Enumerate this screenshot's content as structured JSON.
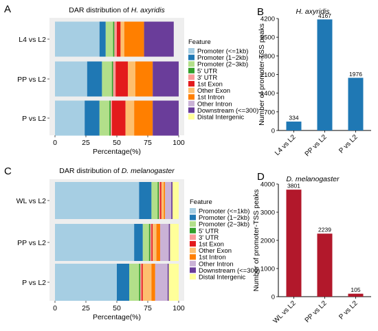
{
  "colors": {
    "Promoter (<=1kb)": "#a6cee3",
    "Promoter (1-2kb)": "#1f78b4",
    "Promoter (2-3kb)": "#b2df8a",
    "5' UTR": "#33a02c",
    "3' UTR": "#fb9a99",
    "1st Exon": "#e31a1c",
    "Other Exon": "#fdbf6f",
    "1st Intron": "#ff7f00",
    "Other Intron": "#cab2d6",
    "Downstream (<=300)": "#6a3d9a",
    "Distal Intergenic": "#ffff99",
    "bar_blue": "#1f78b4",
    "bar_red": "#b2182b"
  },
  "panels": {
    "A": {
      "letter": "A",
      "title_prefix": "DAR distribution of ",
      "title_species": "H. axyridis"
    },
    "B": {
      "letter": "B",
      "title_species": "H. axyridis"
    },
    "C": {
      "letter": "C",
      "title_prefix": "DAR distribution of ",
      "title_species": "D. melanogaster"
    },
    "D": {
      "letter": "D",
      "title_species": "D. melanogaster"
    }
  },
  "legend": {
    "title": "Feature",
    "labels": [
      "Promoter (<=1kb)",
      "Promoter (1−2kb)",
      "Promoter (2−3kb)",
      "5' UTR",
      "3' UTR",
      "1st Exon",
      "Other Exon",
      "1st Intron",
      "Other Intron",
      "Downstream (<=300)",
      "Distal Intergenic"
    ]
  },
  "chart_data": [
    {
      "id": "A",
      "type": "bar",
      "orientation": "horizontal-stacked",
      "title": "DAR distribution of H. axyridis",
      "xlabel": "Percentage(%)",
      "xlim": [
        0,
        100
      ],
      "xticks": [
        "0",
        "25",
        "50",
        "75",
        "100"
      ],
      "categories": [
        "L4 vs L2",
        "PP vs L2",
        "P vs L2"
      ],
      "features": [
        "Promoter (<=1kb)",
        "Promoter (1-2kb)",
        "Promoter (2-3kb)",
        "5' UTR",
        "3' UTR",
        "1st Exon",
        "Other Exon",
        "1st Intron",
        "Other Intron",
        "Downstream (<=300)",
        "Distal Intergenic"
      ],
      "values": [
        [
          36,
          5,
          6,
          1,
          2,
          3,
          3,
          16,
          0,
          24,
          0
        ],
        [
          26,
          12,
          8,
          1,
          2,
          10,
          6,
          14,
          0,
          21,
          0
        ],
        [
          24,
          12,
          8,
          1,
          1,
          11,
          7,
          15,
          0,
          21,
          0
        ]
      ]
    },
    {
      "id": "B",
      "type": "bar",
      "title": "H. axyridis",
      "ylabel": "Number of promoter-TSS peaks",
      "ylim": [
        0,
        4200
      ],
      "yticks": [
        "0",
        "700",
        "1400",
        "2100",
        "2800",
        "3500",
        "4200"
      ],
      "categories": [
        "L4 vs L2",
        "PP vs L2",
        "P vs L2"
      ],
      "values": [
        334,
        4167,
        1976
      ],
      "value_labels": [
        "334",
        "4167",
        "1976"
      ]
    },
    {
      "id": "C",
      "type": "bar",
      "orientation": "horizontal-stacked",
      "title": "DAR distribution of D. melanogaster",
      "xlabel": "Percentage(%)",
      "xlim": [
        0,
        100
      ],
      "xticks": [
        "0",
        "25",
        "50",
        "75",
        "100"
      ],
      "categories": [
        "WL vs L2",
        "PP vs L2",
        "P vs L2"
      ],
      "features": [
        "Promoter (<=1kb)",
        "Promoter (1-2kb)",
        "Promoter (2-3kb)",
        "5' UTR",
        "3' UTR",
        "1st Exon",
        "Other Exon",
        "1st Intron",
        "Other Intron",
        "Downstream (<=300)",
        "Distal Intergenic"
      ],
      "values": [
        [
          68,
          10,
          5,
          1,
          1,
          1,
          2,
          1,
          5,
          1,
          5
        ],
        [
          64,
          7,
          5,
          1,
          1,
          1,
          3,
          3,
          7,
          1,
          7
        ],
        [
          50,
          10,
          8,
          1,
          1,
          1,
          7,
          3,
          10,
          1,
          8
        ]
      ]
    },
    {
      "id": "D",
      "type": "bar",
      "title": "D. melanogaster",
      "ylabel": "Number of promoter-TSS peaks",
      "ylim": [
        0,
        4000
      ],
      "yticks": [
        "0",
        "1000",
        "2000",
        "3000",
        "4000"
      ],
      "categories": [
        "WL vs L2",
        "PP vs L2",
        "P vs L2"
      ],
      "values": [
        3801,
        2239,
        105
      ],
      "value_labels": [
        "3801",
        "2239",
        "105"
      ]
    }
  ]
}
